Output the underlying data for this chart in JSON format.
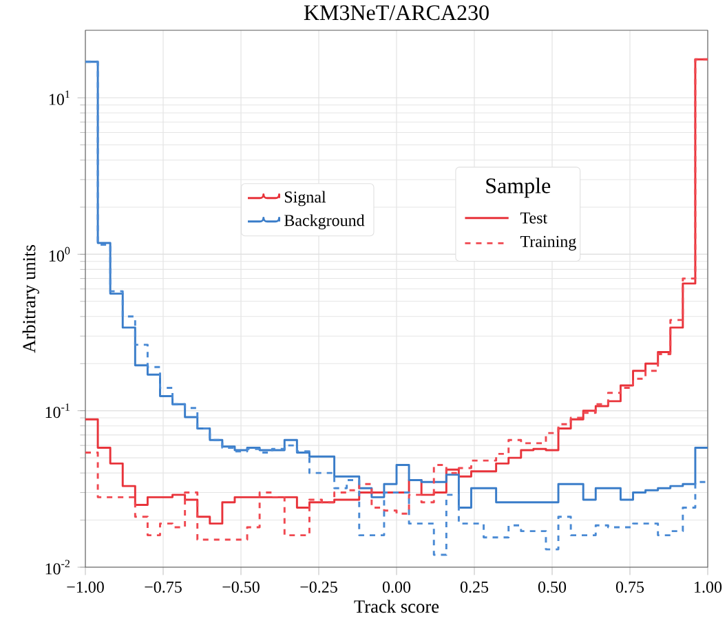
{
  "chart_data": {
    "type": "histogram",
    "title": "KM3NeT/ARCA230",
    "xlabel": "Track score",
    "ylabel": "Arbitrary units",
    "legend_title": "Sample",
    "annotations": [
      "Test"
    ],
    "bins": [
      -1.0,
      -0.96,
      -0.92,
      -0.88,
      -0.84,
      -0.8,
      -0.76,
      -0.72,
      -0.68,
      -0.64,
      -0.6,
      -0.56,
      -0.52,
      -0.48,
      -0.44,
      -0.4,
      -0.36,
      -0.32,
      -0.28,
      -0.24,
      -0.2,
      -0.16,
      -0.12,
      -0.08,
      -0.04,
      0.0,
      0.04,
      0.08,
      0.12,
      0.16,
      0.2,
      0.24,
      0.28,
      0.32,
      0.36,
      0.4,
      0.44,
      0.48,
      0.52,
      0.56,
      0.6,
      0.64,
      0.68,
      0.72,
      0.76,
      0.8,
      0.84,
      0.88,
      0.92,
      0.96,
      1.0
    ],
    "series": [
      {
        "name": "Signal",
        "color": "#e8333a",
        "line_style": "solid",
        "values": [
          0.088,
          0.058,
          0.046,
          0.033,
          0.025,
          0.028,
          0.028,
          0.029,
          0.027,
          0.021,
          0.019,
          0.026,
          0.028,
          0.028,
          0.028,
          0.028,
          0.028,
          0.024,
          0.026,
          0.026,
          0.027,
          0.027,
          0.03,
          0.03,
          0.03,
          0.03,
          0.036,
          0.029,
          0.03,
          0.042,
          0.038,
          0.041,
          0.041,
          0.046,
          0.05,
          0.056,
          0.057,
          0.056,
          0.077,
          0.088,
          0.1,
          0.107,
          0.115,
          0.145,
          0.18,
          0.2,
          0.237,
          0.34,
          0.65,
          17.6
        ]
      },
      {
        "name": "Background",
        "color": "#3a7dc9",
        "line_style": "solid",
        "values": [
          17,
          1.18,
          0.56,
          0.34,
          0.195,
          0.17,
          0.124,
          0.11,
          0.091,
          0.077,
          0.065,
          0.059,
          0.056,
          0.058,
          0.056,
          0.056,
          0.065,
          0.054,
          0.051,
          0.051,
          0.038,
          0.038,
          0.032,
          0.028,
          0.034,
          0.045,
          0.036,
          0.035,
          0.035,
          0.039,
          0.024,
          0.032,
          0.032,
          0.026,
          0.026,
          0.026,
          0.026,
          0.026,
          0.034,
          0.034,
          0.027,
          0.032,
          0.032,
          0.027,
          0.03,
          0.031,
          0.032,
          0.033,
          0.034,
          0.058
        ]
      },
      {
        "name": "Training",
        "color": "#f04850",
        "line_style": "dashed",
        "values": [
          0.054,
          0.028,
          0.028,
          0.028,
          0.021,
          0.016,
          0.019,
          0.018,
          0.03,
          0.015,
          0.015,
          0.015,
          0.015,
          0.018,
          0.03,
          0.028,
          0.016,
          0.016,
          0.027,
          0.026,
          0.03,
          0.031,
          0.034,
          0.024,
          0.023,
          0.022,
          0.029,
          0.026,
          0.045,
          0.04,
          0.043,
          0.048,
          0.048,
          0.053,
          0.065,
          0.062,
          0.062,
          0.072,
          0.082,
          0.09,
          0.097,
          0.11,
          0.13,
          0.14,
          0.16,
          0.18,
          0.23,
          0.38,
          0.7,
          17.6
        ]
      },
      {
        "color": "#4a8ad4",
        "line_style": "dashed",
        "values": [
          17,
          1.15,
          0.58,
          0.4,
          0.264,
          0.19,
          0.14,
          0.11,
          0.104,
          0.077,
          0.065,
          0.058,
          0.055,
          0.057,
          0.054,
          0.057,
          0.06,
          0.055,
          0.04,
          0.04,
          0.032,
          0.036,
          0.016,
          0.016,
          0.03,
          0.03,
          0.019,
          0.019,
          0.012,
          0.029,
          0.019,
          0.019,
          0.0155,
          0.0155,
          0.0185,
          0.017,
          0.017,
          0.013,
          0.021,
          0.016,
          0.016,
          0.0185,
          0.018,
          0.018,
          0.019,
          0.019,
          0.016,
          0.017,
          0.024,
          0.035
        ]
      }
    ],
    "xlim": [
      -1.0,
      1.0
    ],
    "xticks": [
      {
        "value": -1.0,
        "label": "−1.00"
      },
      {
        "value": -0.75,
        "label": "−0.75"
      },
      {
        "value": -0.5,
        "label": "−0.50"
      },
      {
        "value": -0.25,
        "label": "−0.25"
      },
      {
        "value": 0.0,
        "label": "0.00"
      },
      {
        "value": 0.25,
        "label": "0.25"
      },
      {
        "value": 0.5,
        "label": "0.50"
      },
      {
        "value": 0.75,
        "label": "0.75"
      },
      {
        "value": 1.0,
        "label": "1.00"
      }
    ],
    "ylim": [
      0.01,
      27
    ],
    "log": "y",
    "yticks": [
      {
        "value": 0.01,
        "label": "10$^{-2}$"
      },
      {
        "value": 0.1,
        "label": "10$^{-1}$"
      },
      {
        "value": 1,
        "label": "10$^{0}$"
      },
      {
        "value": 10,
        "label": "10$^{1}$"
      }
    ],
    "grid": true,
    "legend": "center"
  }
}
